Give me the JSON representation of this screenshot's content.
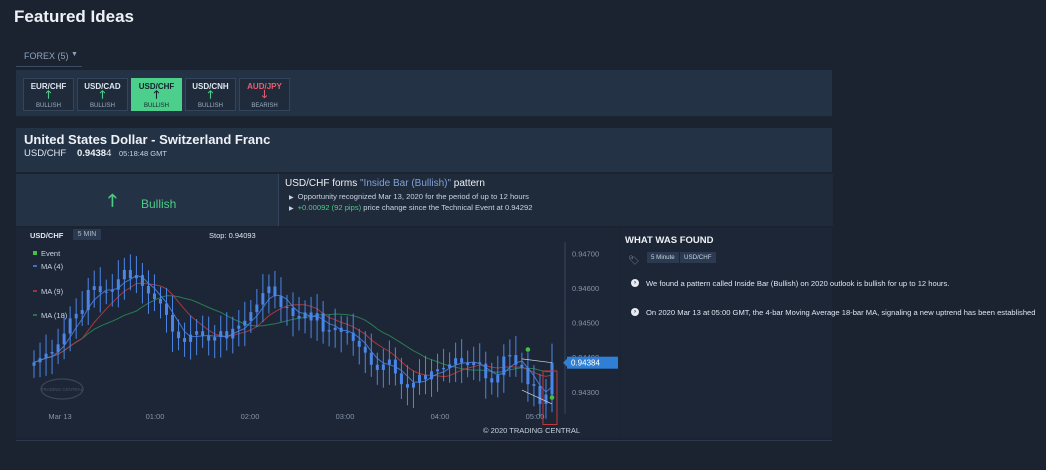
{
  "page_title": "Featured Ideas",
  "filter": {
    "label": "FOREX (5)"
  },
  "pairs": [
    {
      "name": "EUR/CHF",
      "arrow": "🡑",
      "signal": "BULLISH",
      "bearish": false,
      "selected": false
    },
    {
      "name": "USD/CAD",
      "arrow": "🡑",
      "signal": "BULLISH",
      "bearish": false,
      "selected": false
    },
    {
      "name": "USD/CHF",
      "arrow": "🡑",
      "signal": "BULLISH",
      "bearish": false,
      "selected": true
    },
    {
      "name": "USD/CNH",
      "arrow": "🡑",
      "signal": "BULLISH",
      "bearish": false,
      "selected": false
    },
    {
      "name": "AUD/JPY",
      "arrow": "🡓",
      "signal": "BEARISH",
      "bearish": true,
      "selected": false
    }
  ],
  "instrument": {
    "name": "United States Dollar - Switzerland Franc",
    "symbol": "USD/CHF",
    "price": "0.9438",
    "price_sub": "4",
    "time": "05:18:48 GMT"
  },
  "direction": {
    "arrow": "🡑",
    "label": "Bullish"
  },
  "pattern": {
    "title_prefix": "USD/CHF forms ",
    "pattern_name": "\"Inside Bar (Bullish)\"",
    "title_suffix": " pattern",
    "line1": "Opportunity recognized Mar 13, 2020 for the period of up to 12 hours",
    "line2_change": "+0.00092 (92 pips)",
    "line2_rest": " price change since the Technical Event at 0.94292"
  },
  "chart": {
    "pair": "USD/CHF",
    "interval": "5 MIN",
    "stop": "Stop: 0.94093",
    "legend": [
      "Event",
      "MA (4)",
      "MA (9)",
      "MA (18)"
    ],
    "current_price": "0.94384",
    "watermark": "TRADING CENTRAL",
    "copyright": "© 2020 TRADING CENTRAL",
    "colors": {
      "candle": "#4a86e8",
      "ma4": "#4a86e8",
      "ma9": "#c23b3b",
      "ma18": "#2e8b57",
      "event": "#44c044",
      "tag": "#2f7fd6"
    }
  },
  "chart_data": {
    "type": "candlestick",
    "x_ticks": [
      "Mar 13",
      "01:00",
      "02:00",
      "03:00",
      "04:00",
      "05:00"
    ],
    "y_ticks": [
      "0.94700",
      "0.94600",
      "0.94500",
      "0.94400",
      "0.94300"
    ],
    "ylim": [
      0.9423,
      0.9475
    ],
    "close": [
      0.94385,
      0.94397,
      0.9441,
      0.94415,
      0.94437,
      0.94468,
      0.94512,
      0.94525,
      0.94536,
      0.94594,
      0.94605,
      0.94588,
      0.94589,
      0.94595,
      0.94625,
      0.94652,
      0.94628,
      0.94637,
      0.94606,
      0.94584,
      0.94568,
      0.94555,
      0.94522,
      0.94474,
      0.94455,
      0.94444,
      0.94465,
      0.94475,
      0.94462,
      0.94448,
      0.94458,
      0.94475,
      0.94454,
      0.94482,
      0.94491,
      0.94505,
      0.9453,
      0.94552,
      0.94585,
      0.94604,
      0.94576,
      0.94545,
      0.94542,
      0.94519,
      0.94512,
      0.94529,
      0.94506,
      0.94527,
      0.94474,
      0.94478,
      0.94485,
      0.94473,
      0.94471,
      0.94447,
      0.9443,
      0.94413,
      0.94378,
      0.94363,
      0.94379,
      0.94393,
      0.94353,
      0.94322,
      0.94312,
      0.94326,
      0.94349,
      0.94336,
      0.94359,
      0.94365,
      0.94369,
      0.94379,
      0.94397,
      0.94384,
      0.94377,
      0.94385,
      0.94381,
      0.94339,
      0.94327,
      0.94348,
      0.94402,
      0.94406,
      0.94378,
      0.94369,
      0.94322,
      0.94317,
      0.94265,
      0.94292,
      0.94384
    ],
    "event_price": 0.94292,
    "stop_price": 0.94093,
    "current_price": 0.94384
  },
  "found": {
    "title": "WHAT WAS FOUND",
    "tags": [
      "5 Minute",
      "USD/CHF"
    ],
    "items": [
      "We found a pattern called Inside Bar (Bullish) on 2020 outlook is bullish for up to 12 hours.",
      "On 2020 Mar 13 at 05:00 GMT, the 4-bar Moving Average 18-bar MA, signaling a new uptrend has been established"
    ]
  }
}
